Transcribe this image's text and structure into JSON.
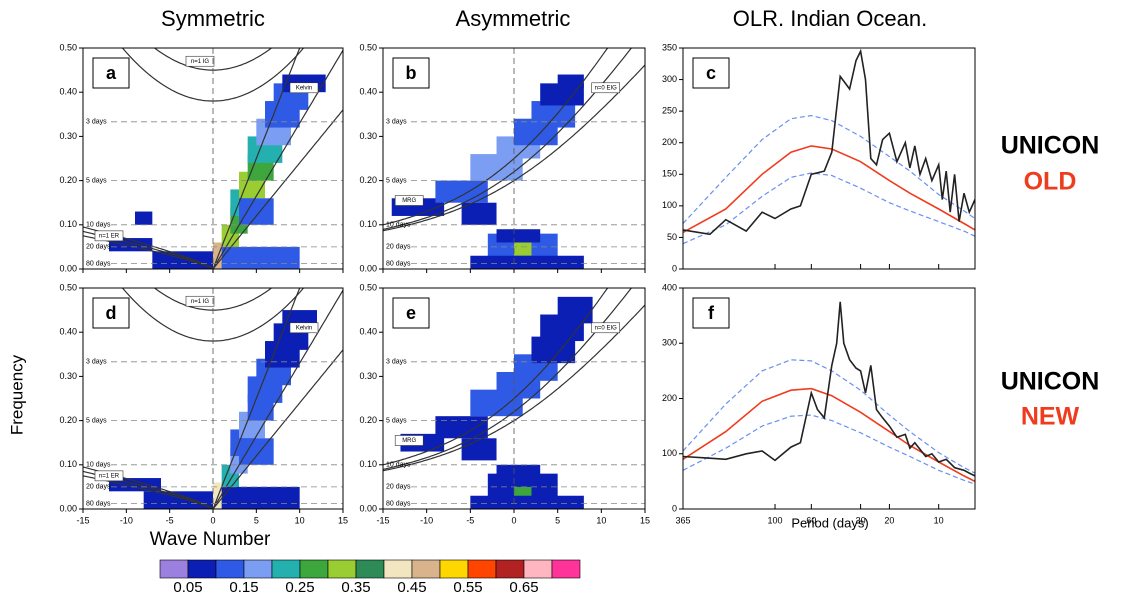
{
  "column_titles": [
    "Symmetric",
    "Asymmetric",
    "OLR. Indian Ocean."
  ],
  "row_labels": [
    {
      "model": "UNICON",
      "version": "OLD"
    },
    {
      "model": "UNICON",
      "version": "NEW"
    }
  ],
  "y_axis_label": "Frequency",
  "x_axis_label": "Wave Number",
  "wave_axes": {
    "xlim": [
      -15,
      15
    ],
    "xticks": [
      -15,
      -10,
      -5,
      0,
      5,
      10,
      15
    ],
    "ylim": [
      0,
      0.5
    ],
    "yticks": [
      {
        "value": 0,
        "label": "0.00"
      },
      {
        "value": 0.1,
        "label": "0.10"
      },
      {
        "value": 0.2,
        "label": "0.20"
      },
      {
        "value": 0.3,
        "label": "0.30"
      },
      {
        "value": 0.4,
        "label": "0.40"
      },
      {
        "value": 0.5,
        "label": "0.50"
      }
    ],
    "period_lines": [
      {
        "value": 0.333,
        "label": "3 days"
      },
      {
        "value": 0.2,
        "label": "5 days"
      },
      {
        "value": 0.1,
        "label": "10 days"
      },
      {
        "value": 0.05,
        "label": "20 days"
      },
      {
        "value": 0.0125,
        "label": "80 days"
      }
    ]
  },
  "period_axis": {
    "label": "Period (days)",
    "xlim": [
      365,
      6
    ],
    "xticks": [
      365,
      100,
      60,
      30,
      20,
      10
    ],
    "log": true
  },
  "colorbar": {
    "ticks": [
      0.05,
      0.15,
      0.25,
      0.35,
      0.45,
      0.55,
      0.65
    ],
    "colors": [
      "#9b80e0",
      "#0b1fb5",
      "#2f5ae6",
      "#7c9ef2",
      "#25b0b0",
      "#3da63d",
      "#9acd32",
      "#2e8b57",
      "#f2e6c0",
      "#d9b38c",
      "#ffd700",
      "#ff4500",
      "#b22222",
      "#ffb6c1",
      "#ff3399"
    ]
  },
  "chart_data": [
    {
      "type": "heatmap",
      "label": "a",
      "kind": "symmetric",
      "curve_labels": [
        "n=1 IG",
        "Kelvin",
        "n=1 ER"
      ],
      "cells": [
        [
          0,
          2,
          0,
          0.06,
          0.45
        ],
        [
          1,
          3,
          0.04,
          0.1,
          0.3
        ],
        [
          2,
          4,
          0.08,
          0.14,
          0.25
        ],
        [
          2,
          5,
          0.12,
          0.18,
          0.2
        ],
        [
          3,
          6,
          0.16,
          0.22,
          0.3
        ],
        [
          4,
          7,
          0.2,
          0.26,
          0.25
        ],
        [
          4,
          8,
          0.24,
          0.3,
          0.2
        ],
        [
          5,
          9,
          0.28,
          0.34,
          0.15
        ],
        [
          6,
          10,
          0.32,
          0.38,
          0.12
        ],
        [
          7,
          11,
          0.36,
          0.42,
          0.1
        ],
        [
          8,
          13,
          0.4,
          0.44,
          0.08
        ],
        [
          1,
          10,
          0,
          0.05,
          0.1
        ],
        [
          -7,
          0,
          0,
          0.04,
          0.08
        ],
        [
          -9,
          -7,
          0.1,
          0.13,
          0.08
        ],
        [
          -12,
          -7,
          0.04,
          0.07,
          0.06
        ],
        [
          3,
          7,
          0.1,
          0.16,
          0.12
        ]
      ]
    },
    {
      "type": "heatmap",
      "label": "b",
      "kind": "asymmetric",
      "curve_labels": [
        "n=0 EIG",
        "MRG"
      ],
      "cells": [
        [
          -14,
          -8,
          0.12,
          0.16,
          0.08
        ],
        [
          -9,
          -3,
          0.15,
          0.2,
          0.1
        ],
        [
          -5,
          1,
          0.2,
          0.26,
          0.15
        ],
        [
          -2,
          3,
          0.25,
          0.3,
          0.15
        ],
        [
          0,
          5,
          0.28,
          0.34,
          0.12
        ],
        [
          2,
          7,
          0.32,
          0.38,
          0.1
        ],
        [
          3,
          8,
          0.37,
          0.42,
          0.08
        ],
        [
          5,
          8,
          0.41,
          0.44,
          0.06
        ],
        [
          -6,
          -2,
          0.1,
          0.15,
          0.08
        ],
        [
          -3,
          5,
          0.02,
          0.08,
          0.1
        ],
        [
          0,
          2,
          0.03,
          0.06,
          0.3
        ],
        [
          -5,
          8,
          0,
          0.03,
          0.07
        ],
        [
          -2,
          3,
          0.06,
          0.09,
          0.08
        ]
      ]
    },
    {
      "type": "line",
      "label": "c",
      "ylim": [
        0,
        350
      ],
      "yticks": [
        0,
        50,
        100,
        150,
        200,
        250,
        300,
        350
      ],
      "series": [
        {
          "color": "#6b8ff0",
          "dash": true,
          "x": [
            365,
            200,
            120,
            80,
            60,
            45,
            30,
            20,
            15,
            10,
            7,
            6
          ],
          "values": [
            72,
            145,
            205,
            238,
            243,
            235,
            210,
            178,
            155,
            118,
            92,
            80
          ]
        },
        {
          "color": "#6b8ff0",
          "dash": true,
          "x": [
            365,
            200,
            120,
            80,
            60,
            45,
            30,
            20,
            15,
            10,
            7,
            6
          ],
          "values": [
            40,
            70,
            115,
            145,
            152,
            148,
            128,
            105,
            92,
            75,
            60,
            52
          ]
        },
        {
          "color": "#f03c1e",
          "dash": false,
          "x": [
            365,
            200,
            120,
            80,
            60,
            45,
            30,
            20,
            15,
            10,
            7,
            6
          ],
          "values": [
            58,
            95,
            150,
            185,
            195,
            190,
            170,
            140,
            120,
            95,
            72,
            62
          ]
        },
        {
          "color": "#222222",
          "dash": false,
          "x": [
            365,
            250,
            200,
            150,
            120,
            100,
            80,
            70,
            60,
            50,
            45,
            40,
            35,
            32,
            30,
            28,
            26,
            24,
            22,
            20,
            18,
            16,
            15,
            14,
            13,
            12,
            11,
            10,
            9.5,
            9,
            8.5,
            8,
            7.5,
            7,
            6.5,
            6
          ],
          "values": [
            62,
            55,
            78,
            60,
            90,
            80,
            95,
            100,
            150,
            155,
            185,
            305,
            285,
            330,
            345,
            300,
            175,
            165,
            205,
            215,
            170,
            200,
            160,
            195,
            150,
            175,
            140,
            165,
            110,
            155,
            90,
            150,
            75,
            120,
            90,
            110
          ]
        }
      ]
    },
    {
      "type": "heatmap",
      "label": "d",
      "kind": "symmetric",
      "curve_labels": [
        "n=1 IG",
        "Kelvin",
        "n=1 ER"
      ],
      "cells": [
        [
          0,
          2,
          0,
          0.06,
          0.4
        ],
        [
          1,
          3,
          0.04,
          0.1,
          0.2
        ],
        [
          2,
          4,
          0.08,
          0.14,
          0.15
        ],
        [
          2,
          5,
          0.12,
          0.18,
          0.12
        ],
        [
          3,
          6,
          0.16,
          0.22,
          0.15
        ],
        [
          4,
          7,
          0.2,
          0.26,
          0.12
        ],
        [
          4,
          8,
          0.24,
          0.3,
          0.1
        ],
        [
          5,
          9,
          0.28,
          0.34,
          0.1
        ],
        [
          6,
          10,
          0.32,
          0.38,
          0.08
        ],
        [
          7,
          11,
          0.36,
          0.42,
          0.07
        ],
        [
          8,
          12,
          0.4,
          0.45,
          0.06
        ],
        [
          1,
          10,
          0,
          0.05,
          0.09
        ],
        [
          -8,
          0,
          0,
          0.04,
          0.08
        ],
        [
          -12,
          -6,
          0.04,
          0.07,
          0.06
        ],
        [
          3,
          7,
          0.1,
          0.16,
          0.1
        ]
      ]
    },
    {
      "type": "heatmap",
      "label": "e",
      "kind": "asymmetric",
      "curve_labels": [
        "n=0 EIG",
        "MRG"
      ],
      "cells": [
        [
          -13,
          -8,
          0.13,
          0.17,
          0.07
        ],
        [
          -9,
          -3,
          0.16,
          0.21,
          0.08
        ],
        [
          -5,
          1,
          0.21,
          0.27,
          0.12
        ],
        [
          -2,
          3,
          0.25,
          0.31,
          0.12
        ],
        [
          0,
          5,
          0.29,
          0.35,
          0.1
        ],
        [
          2,
          7,
          0.33,
          0.39,
          0.09
        ],
        [
          3,
          8,
          0.38,
          0.44,
          0.07
        ],
        [
          5,
          9,
          0.42,
          0.48,
          0.06
        ],
        [
          -6,
          -2,
          0.11,
          0.16,
          0.07
        ],
        [
          -3,
          5,
          0.02,
          0.08,
          0.08
        ],
        [
          0,
          2,
          0.02,
          0.05,
          0.25
        ],
        [
          -5,
          8,
          0,
          0.03,
          0.07
        ],
        [
          -2,
          3,
          0.06,
          0.1,
          0.07
        ]
      ]
    },
    {
      "type": "line",
      "label": "f",
      "ylim": [
        0,
        400
      ],
      "yticks": [
        0,
        100,
        200,
        300,
        400
      ],
      "series": [
        {
          "color": "#6b8ff0",
          "dash": true,
          "x": [
            365,
            200,
            120,
            80,
            60,
            45,
            30,
            20,
            15,
            10,
            7,
            6
          ],
          "values": [
            105,
            190,
            250,
            270,
            268,
            250,
            215,
            170,
            140,
            102,
            75,
            65
          ]
        },
        {
          "color": "#6b8ff0",
          "dash": true,
          "x": [
            365,
            200,
            120,
            80,
            60,
            45,
            30,
            20,
            15,
            10,
            7,
            6
          ],
          "values": [
            70,
            110,
            150,
            168,
            170,
            160,
            138,
            112,
            95,
            70,
            52,
            45
          ]
        },
        {
          "color": "#f03c1e",
          "dash": false,
          "x": [
            365,
            200,
            120,
            80,
            60,
            45,
            30,
            20,
            15,
            10,
            7,
            6
          ],
          "values": [
            90,
            140,
            195,
            215,
            218,
            205,
            175,
            140,
            115,
            85,
            60,
            50
          ]
        },
        {
          "color": "#222222",
          "dash": false,
          "x": [
            365,
            250,
            200,
            150,
            120,
            100,
            80,
            70,
            60,
            55,
            50,
            45,
            42,
            40,
            38,
            35,
            32,
            30,
            28,
            26,
            24,
            22,
            20,
            18,
            16,
            15,
            14,
            12,
            11,
            10,
            9,
            8,
            7,
            6.5,
            6
          ],
          "values": [
            95,
            92,
            90,
            100,
            105,
            88,
            112,
            120,
            210,
            180,
            165,
            260,
            300,
            375,
            300,
            270,
            255,
            250,
            210,
            260,
            180,
            165,
            150,
            130,
            135,
            110,
            120,
            95,
            100,
            85,
            90,
            75,
            70,
            65,
            60
          ]
        }
      ]
    }
  ]
}
